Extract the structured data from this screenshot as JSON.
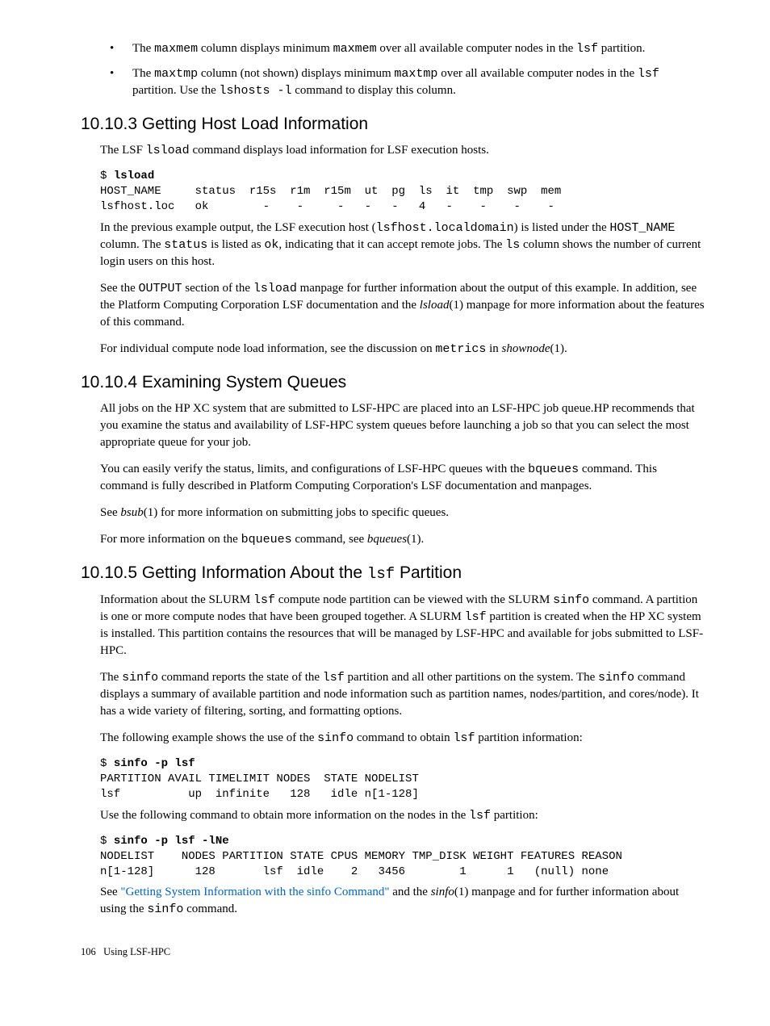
{
  "bullets": [
    {
      "pre": "The ",
      "c1": "maxmem",
      "mid1": " column displays minimum ",
      "c2": "maxmem",
      "mid2": " over all available computer nodes in the ",
      "c3": "lsf",
      "post": " partition."
    },
    {
      "pre": "The ",
      "c1": "maxtmp",
      "mid1": " column (not shown) displays minimum ",
      "c2": "maxtmp",
      "mid2": " over all available computer nodes in the ",
      "c3": "lsf",
      "mid3": " partition. Use the ",
      "c4": "lshosts -l",
      "post": " command to display this column."
    }
  ],
  "sec103": {
    "title": "10.10.3 Getting Host Load Information",
    "p1a": "The LSF ",
    "p1c": "lsload",
    "p1b": " command displays load information for LSF execution hosts.",
    "term_prompt": "$ ",
    "term_cmd": "lsload",
    "term_line2": "HOST_NAME     status  r15s  r1m  r15m  ut  pg  ls  it  tmp  swp  mem",
    "term_line3": "lsfhost.loc   ok        -    -     -   -   -   4   -    -    -    -",
    "p2a": "In the previous example output, the LSF execution host (",
    "p2c1": "lsfhost.localdomain",
    "p2b": ") is listed under the ",
    "p2c2": "HOST_NAME",
    "p2c": " column. The ",
    "p2c3": "status",
    "p2d": " is listed as ",
    "p2c4": "ok",
    "p2e": ", indicating that it can accept remote jobs. The ",
    "p2c5": "ls",
    "p2f": " column shows the number of current login users on this host.",
    "p3a": "See the ",
    "p3c1": "OUTPUT",
    "p3b": " section of the ",
    "p3c2": "lsload",
    "p3c": " manpage for further information about the output of this example. In addition, see the Platform Computing Corporation LSF documentation and the ",
    "p3i": "lsload",
    "p3d": "(1) manpage for more information about the features of this command.",
    "p4a": "For individual compute node load information, see the discussion on ",
    "p4c": "metrics",
    "p4b": " in ",
    "p4i": "shownode",
    "p4d": "(1)."
  },
  "sec104": {
    "title": "10.10.4 Examining System Queues",
    "p1": "All jobs on the HP XC system that are submitted to LSF-HPC are placed into an LSF-HPC job queue.HP recommends that you examine the status and availability of LSF-HPC system queues before launching a job so that you can select the most appropriate queue for your job.",
    "p2a": "You can easily verify the status, limits, and configurations of LSF-HPC queues with the ",
    "p2c": "bqueues",
    "p2b": " command. This command is fully described in Platform Computing Corporation's LSF documentation and manpages.",
    "p3a": "See ",
    "p3i": "bsub",
    "p3b": "(1) for more information on submitting jobs to specific queues.",
    "p4a": "For more information on the ",
    "p4c": "bqueues",
    "p4b": " command, see ",
    "p4i": "bqueues",
    "p4d": "(1)."
  },
  "sec105": {
    "title_a": "10.10.5 Getting Information About the ",
    "title_c": "lsf",
    "title_b": " Partition",
    "p1a": "Information about the SLURM ",
    "p1c1": "lsf",
    "p1b": " compute node partition can be viewed with the SLURM ",
    "p1c2": "sinfo",
    "p1c": " command. A partition is one or more compute nodes that have been grouped together. A SLURM ",
    "p1c3": "lsf",
    "p1d": " partition is created when the HP XC system is installed. This partition contains the resources that will be managed by LSF-HPC and available for jobs submitted to LSF-HPC.",
    "p2a": "The ",
    "p2c1": "sinfo",
    "p2b": " command reports the state of the ",
    "p2c2": "lsf",
    "p2c": " partition and all other partitions on the system. The ",
    "p2c3": "sinfo",
    "p2d": " command displays a summary of available partition and node information such as partition names, nodes/partition, and cores/node). It has a wide variety of filtering, sorting, and formatting options.",
    "p3a": "The following example shows the use of the ",
    "p3c1": "sinfo",
    "p3b": " command to obtain ",
    "p3c2": "lsf",
    "p3c": " partition information:",
    "t1_prompt": "$ ",
    "t1_cmd": "sinfo -p lsf",
    "t1_l2": "PARTITION AVAIL TIMELIMIT NODES  STATE NODELIST",
    "t1_l3": "lsf          up  infinite   128   idle n[1-128]",
    "p4a": "Use the following command to obtain more information on the nodes in the ",
    "p4c": "lsf",
    "p4b": " partition:",
    "t2_prompt": "$ ",
    "t2_cmd": "sinfo -p lsf -lNe",
    "t2_l2": "NODELIST    NODES PARTITION STATE CPUS MEMORY TMP_DISK WEIGHT FEATURES REASON",
    "t2_l3": "n[1-128]      128       lsf  idle    2   3456        1      1   (null) none",
    "p5a": "See ",
    "p5link": "\"Getting System Information with the sinfo Command\"",
    "p5b": " and the ",
    "p5i": "sinfo",
    "p5c": "(1) manpage and for further information about using the ",
    "p5c1": "sinfo",
    "p5d": " command."
  },
  "footer": {
    "page": "106",
    "label": "Using LSF-HPC"
  }
}
